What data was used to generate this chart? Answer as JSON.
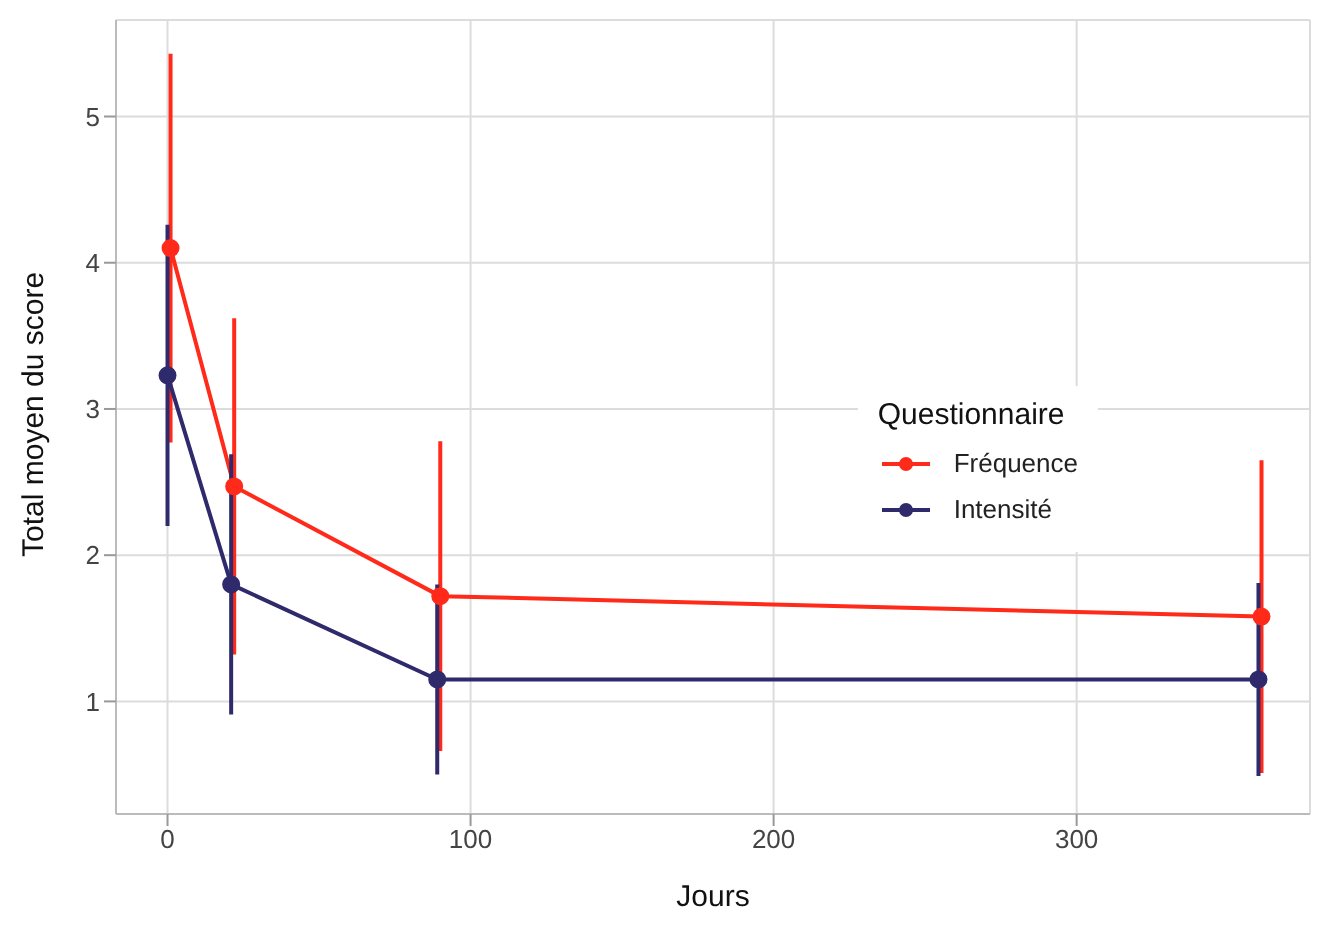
{
  "chart_data": {
    "type": "line",
    "xlabel": "Jours",
    "ylabel": "Total moyen du score",
    "legend_title": "Questionnaire",
    "xlim": [
      -17,
      377
    ],
    "ylim": [
      0.23,
      5.66
    ],
    "xticks": [
      0,
      100,
      200,
      300
    ],
    "yticks": [
      1,
      2,
      3,
      4,
      5
    ],
    "grid": true,
    "legend": "right",
    "marker": "circle",
    "line_style": "solid",
    "series": [
      {
        "name": "Fréquence",
        "color": "#ff2a1a",
        "x": [
          1,
          22,
          90,
          361
        ],
        "values": [
          4.1,
          2.47,
          1.72,
          1.58
        ],
        "errors": [
          1.33,
          1.15,
          1.06,
          1.07
        ]
      },
      {
        "name": "Intensité",
        "color": "#2e2a6b",
        "x": [
          0,
          21,
          89,
          360
        ],
        "values": [
          3.23,
          1.8,
          1.15,
          1.15
        ],
        "errors": [
          1.03,
          0.89,
          0.65,
          0.66
        ]
      }
    ]
  }
}
